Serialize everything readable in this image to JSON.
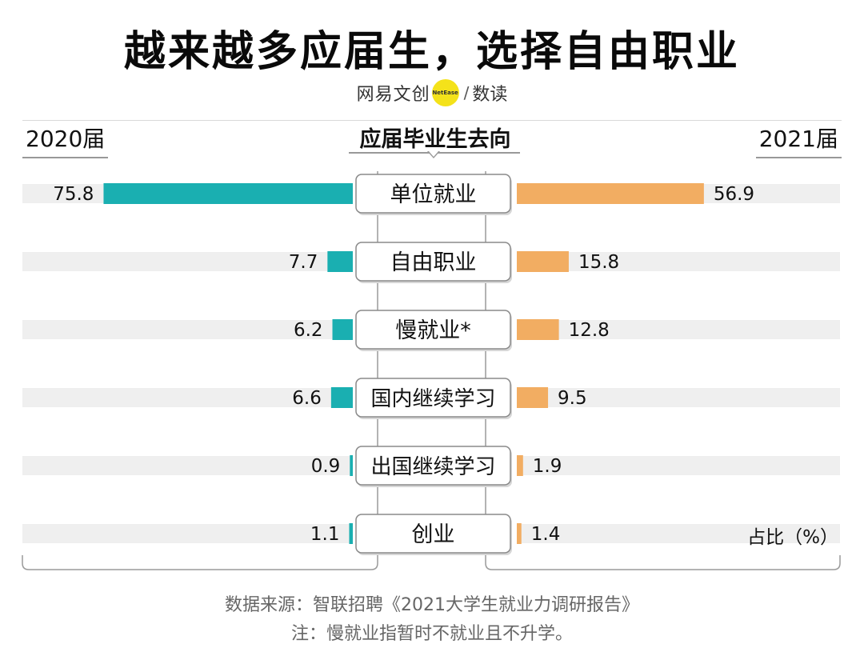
{
  "title": "越来越多应届生，选择自由职业",
  "brand": {
    "name": "网易文创",
    "badge": "NetEase",
    "slash": "/",
    "sub": "数读"
  },
  "header": {
    "left_year": "2020届",
    "center": "应届毕业生去向",
    "right_year": "2021届"
  },
  "unit_label": "占比（%）",
  "colors": {
    "left_bar": "#1aafb1",
    "right_bar": "#f2ad62",
    "track": "#efefef"
  },
  "chart_data": {
    "type": "bar",
    "title": "越来越多应届生，选择自由职业",
    "categories": [
      "单位就业",
      "自由职业",
      "慢就业*",
      "国内继续学习",
      "出国继续学习",
      "创业"
    ],
    "series": [
      {
        "name": "2020届",
        "values": [
          75.8,
          7.7,
          6.2,
          6.6,
          0.9,
          1.1
        ]
      },
      {
        "name": "2021届",
        "values": [
          56.9,
          15.8,
          12.8,
          9.5,
          1.9,
          1.4
        ]
      }
    ],
    "value_labels_left": [
      "75.8",
      "7.7",
      "6.2",
      "6.6",
      "0.9",
      "1.1"
    ],
    "value_labels_right": [
      "56.9",
      "15.8",
      "12.8",
      "9.5",
      "1.9",
      "1.4"
    ],
    "ylabel": "占比（%）"
  },
  "footer": {
    "source": "数据来源：智联招聘《2021大学生就业力调研报告》",
    "note": "注：慢就业指暂时不就业且不升学。"
  }
}
